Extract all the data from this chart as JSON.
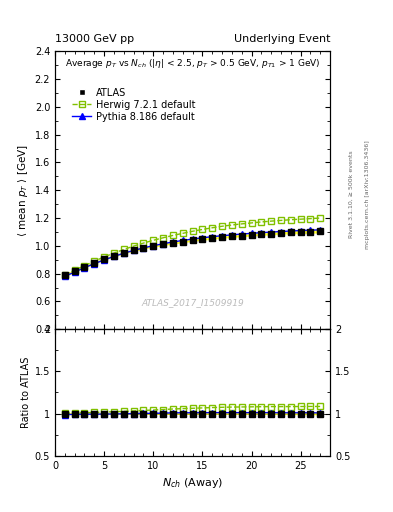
{
  "title_left": "13000 GeV pp",
  "title_right": "Underlying Event",
  "watermark": "ATLAS_2017_I1509919",
  "rivet_label": "Rivet 3.1.10, ≥ 500k events",
  "arxiv_label": "mcplots.cern.ch [arXiv:1306.3436]",
  "ylabel_main": "⟨ mean p_T ⟩ [GeV]",
  "ylabel_ratio": "Ratio to ATLAS",
  "xlabel": "N_{ch} (Away)",
  "ylim_main": [
    0.4,
    2.4
  ],
  "ylim_ratio": [
    0.5,
    2.0
  ],
  "xlim": [
    0,
    28
  ],
  "yticks_main": [
    0.4,
    0.6,
    0.8,
    1.0,
    1.2,
    1.4,
    1.6,
    1.8,
    2.0,
    2.2,
    2.4
  ],
  "yticks_ratio": [
    0.5,
    1.0,
    1.5,
    2.0
  ],
  "xticks": [
    0,
    5,
    10,
    15,
    20,
    25
  ],
  "atlas_x": [
    1,
    2,
    3,
    4,
    5,
    6,
    7,
    8,
    9,
    10,
    11,
    12,
    13,
    14,
    15,
    16,
    17,
    18,
    19,
    20,
    21,
    22,
    23,
    24,
    25,
    26,
    27
  ],
  "atlas_y": [
    0.79,
    0.82,
    0.85,
    0.878,
    0.905,
    0.928,
    0.95,
    0.968,
    0.984,
    0.998,
    1.01,
    1.02,
    1.03,
    1.04,
    1.048,
    1.055,
    1.062,
    1.068,
    1.074,
    1.079,
    1.084,
    1.088,
    1.093,
    1.097,
    1.1,
    1.103,
    1.107
  ],
  "herwig_x": [
    1,
    2,
    3,
    4,
    5,
    6,
    7,
    8,
    9,
    10,
    11,
    12,
    13,
    14,
    15,
    16,
    17,
    18,
    19,
    20,
    21,
    22,
    23,
    24,
    25,
    26,
    27
  ],
  "herwig_y": [
    0.792,
    0.825,
    0.858,
    0.89,
    0.92,
    0.948,
    0.974,
    0.998,
    1.02,
    1.04,
    1.058,
    1.075,
    1.09,
    1.105,
    1.118,
    1.13,
    1.141,
    1.15,
    1.158,
    1.165,
    1.172,
    1.178,
    1.183,
    1.188,
    1.192,
    1.196,
    1.2
  ],
  "pythia_x": [
    1,
    2,
    3,
    4,
    5,
    6,
    7,
    8,
    9,
    10,
    11,
    12,
    13,
    14,
    15,
    16,
    17,
    18,
    19,
    20,
    21,
    22,
    23,
    24,
    25,
    26,
    27
  ],
  "pythia_y": [
    0.78,
    0.812,
    0.843,
    0.872,
    0.899,
    0.924,
    0.947,
    0.967,
    0.985,
    1.001,
    1.015,
    1.028,
    1.039,
    1.049,
    1.058,
    1.066,
    1.073,
    1.079,
    1.085,
    1.09,
    1.095,
    1.099,
    1.103,
    1.107,
    1.11,
    1.113,
    1.115
  ],
  "atlas_color": "black",
  "herwig_color": "#80c000",
  "pythia_color": "blue",
  "atlas_error_y": [
    0.005,
    0.004,
    0.004,
    0.003,
    0.003,
    0.003,
    0.003,
    0.003,
    0.003,
    0.003,
    0.003,
    0.003,
    0.003,
    0.003,
    0.003,
    0.003,
    0.003,
    0.004,
    0.004,
    0.004,
    0.004,
    0.005,
    0.005,
    0.006,
    0.007,
    0.008,
    0.01
  ]
}
